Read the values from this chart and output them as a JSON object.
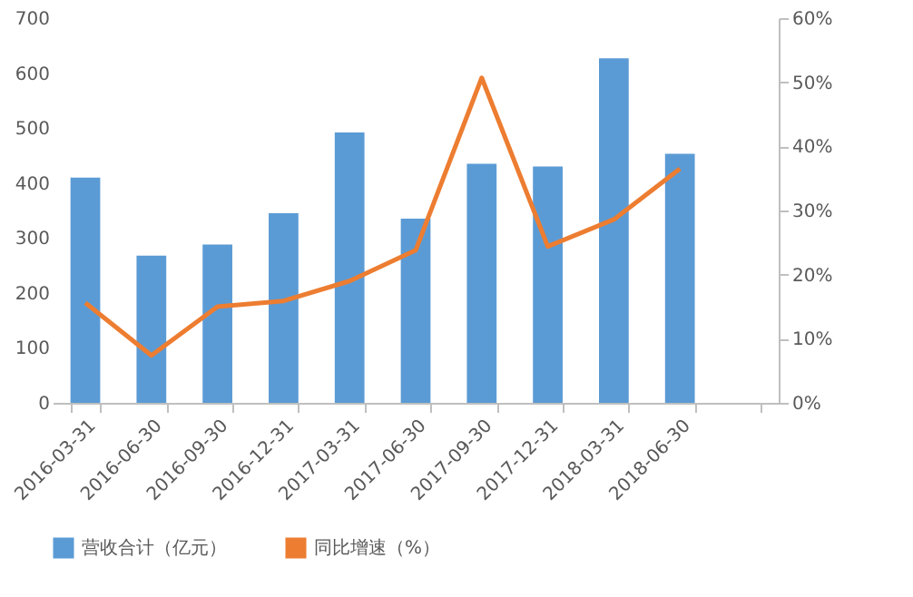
{
  "chart_data": {
    "type": "bar",
    "categories": [
      "2016-03-31",
      "2016-06-30",
      "2016-09-30",
      "2016-12-31",
      "2017-03-31",
      "2017-06-30",
      "2017-09-30",
      "2017-12-31",
      "2018-03-31",
      "2018-06-30",
      null
    ],
    "series": [
      {
        "name": "营收合计（亿元）",
        "color": "#5b9bd5",
        "values": [
          410,
          268,
          288,
          345,
          492,
          335,
          435,
          430,
          627,
          453,
          null
        ]
      },
      {
        "name": "同比增速（%）",
        "type": "line",
        "axis": "y2",
        "color": "#ed7d31",
        "values": [
          15.6,
          7.4,
          15,
          15.9,
          19,
          23.8,
          50.7,
          24.4,
          28.6,
          36.5,
          null
        ]
      }
    ],
    "ylim": [
      0,
      700
    ],
    "yticks": [
      0,
      100,
      200,
      300,
      400,
      500,
      600,
      700
    ],
    "y2lim": [
      0,
      60
    ],
    "y2ticks": [
      {
        "value": 0,
        "label": "0%"
      },
      {
        "value": 10,
        "label": "10%"
      },
      {
        "value": 20,
        "label": "20%"
      },
      {
        "value": 30,
        "label": "30%"
      },
      {
        "value": 40,
        "label": "40%"
      },
      {
        "value": 50,
        "label": "50%"
      },
      {
        "value": 60,
        "label": "60%"
      }
    ],
    "grid": false,
    "legend": "bottom",
    "marker": "none",
    "line_style": "solid"
  }
}
